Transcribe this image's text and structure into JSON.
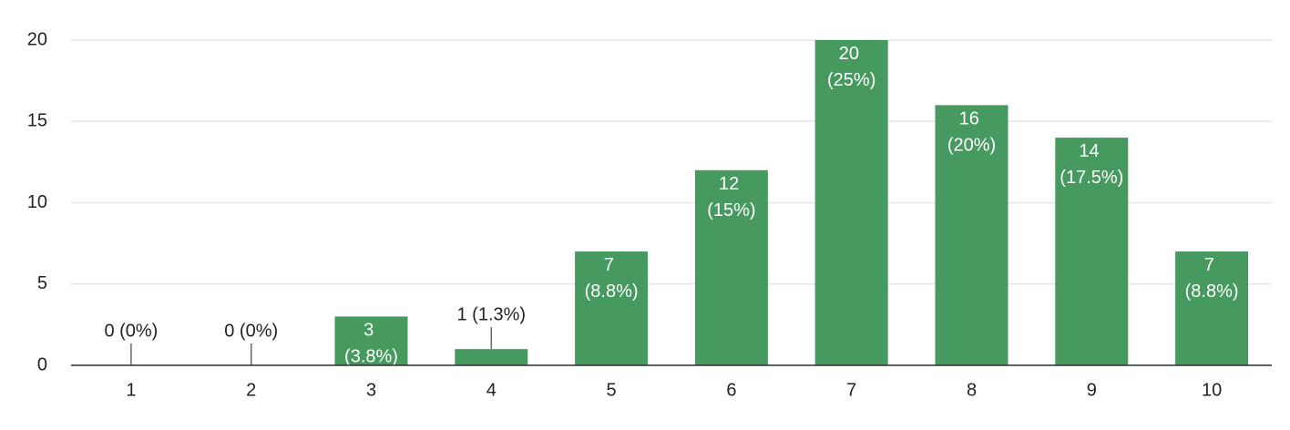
{
  "chart_data": {
    "type": "bar",
    "categories": [
      "1",
      "2",
      "3",
      "4",
      "5",
      "6",
      "7",
      "8",
      "9",
      "10"
    ],
    "values": [
      0,
      0,
      3,
      1,
      7,
      12,
      20,
      16,
      14,
      7
    ],
    "value_labels": [
      "0 (0%)",
      "0 (0%)",
      "3 (3.8%)",
      "1 (1.3%)",
      "7 (8.8%)",
      "12 (15%)",
      "20 (25%)",
      "16 (20%)",
      "14 (17.5%)",
      "7 (8.8%)"
    ],
    "color": "#46995f",
    "ylim": [
      0,
      20
    ],
    "yticks": [
      0,
      5,
      10,
      15,
      20
    ],
    "grid": true
  }
}
